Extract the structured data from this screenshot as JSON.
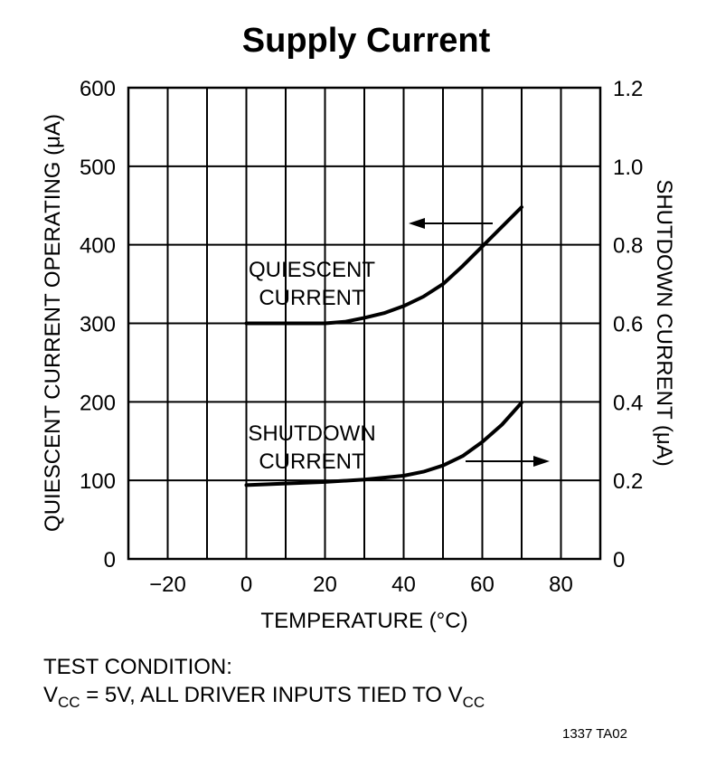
{
  "chart_data": {
    "type": "line",
    "title": "Supply Current",
    "xlabel": "TEMPERATURE (°C)",
    "ylabel_left": "QUIESCENT CURRENT OPERATING (μA)",
    "ylabel_right": "SHUTDOWN CURRENT (μA)",
    "xlim": [
      -30,
      90
    ],
    "ylim_left": [
      0,
      600
    ],
    "ylim_right": [
      0,
      1.2
    ],
    "x_ticks": [
      "−20",
      "0",
      "20",
      "40",
      "60",
      "80"
    ],
    "x_tick_values": [
      -20,
      0,
      20,
      40,
      60,
      80
    ],
    "y_left_ticks": [
      "0",
      "100",
      "200",
      "300",
      "400",
      "500",
      "600"
    ],
    "y_left_tick_values": [
      0,
      100,
      200,
      300,
      400,
      500,
      600
    ],
    "y_right_ticks": [
      "0",
      "0.2",
      "0.4",
      "0.6",
      "0.8",
      "1.0",
      "1.2"
    ],
    "y_right_tick_values": [
      0,
      0.2,
      0.4,
      0.6,
      0.8,
      1.0,
      1.2
    ],
    "grid": true,
    "series": [
      {
        "name": "QUIESCENT CURRENT",
        "axis": "left",
        "x": [
          0,
          10,
          20,
          25,
          30,
          35,
          40,
          45,
          50,
          55,
          60,
          65,
          70
        ],
        "y": [
          300,
          300,
          300,
          302,
          307,
          313,
          322,
          334,
          350,
          373,
          398,
          423,
          448
        ]
      },
      {
        "name": "SHUTDOWN CURRENT",
        "axis": "right",
        "x": [
          0,
          10,
          20,
          30,
          40,
          45,
          50,
          55,
          60,
          65,
          70
        ],
        "y": [
          0.188,
          0.192,
          0.196,
          0.202,
          0.212,
          0.222,
          0.238,
          0.262,
          0.298,
          0.342,
          0.398
        ]
      }
    ],
    "annotations": {
      "quiescent_label": [
        "QUIESCENT",
        "CURRENT"
      ],
      "shutdown_label": [
        "SHUTDOWN",
        "CURRENT"
      ]
    }
  },
  "note": {
    "line1": "TEST CONDITION:",
    "line2_v": "V",
    "line2_sub": "CC",
    "line2_mid": " = 5V, ALL DRIVER INPUTS TIED TO V",
    "line2_sub2": "CC"
  },
  "figure_code": "1337 TA02"
}
